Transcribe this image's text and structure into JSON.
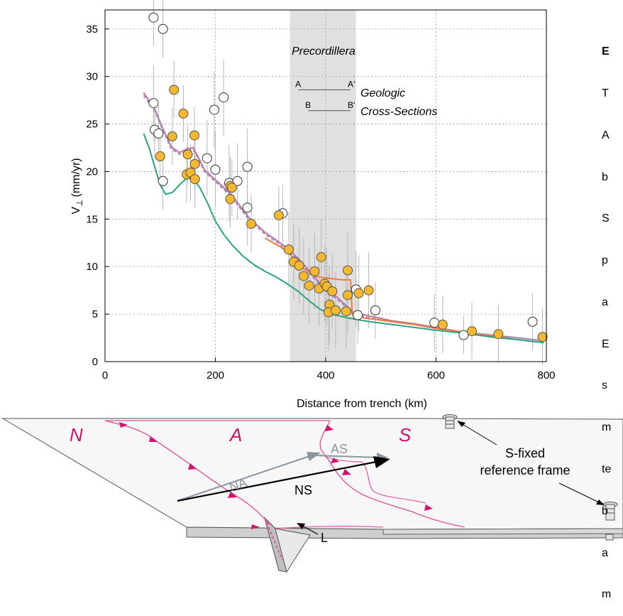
{
  "chart_data": {
    "type": "scatter",
    "xlabel": "Distance from trench (km)",
    "ylabel_main": "V",
    "ylabel_sub": "⊥",
    "ylabel_units": "(mm/yr)",
    "xlim": [
      0,
      800
    ],
    "ylim": [
      0,
      37
    ],
    "xticks": [
      0,
      200,
      400,
      600,
      800
    ],
    "yticks": [
      0,
      5,
      10,
      15,
      20,
      25,
      30,
      35
    ],
    "grid": true,
    "shaded_region": {
      "label": "Precordillera",
      "x": [
        335,
        455
      ]
    },
    "cross_sections": {
      "label_line1": "Geologic",
      "label_line2": "Cross-Sections",
      "lines": [
        {
          "start": "A",
          "end": "A'",
          "x": [
            350,
            445
          ],
          "y": 28.6
        },
        {
          "start": "B",
          "end": "B'",
          "x": [
            368,
            445
          ],
          "y": 26.4
        }
      ]
    },
    "open_points": [
      [
        88,
        36.2,
        3
      ],
      [
        105,
        35.0,
        3
      ],
      [
        88,
        27.2,
        4
      ],
      [
        90,
        24.4,
        3
      ],
      [
        97,
        24.0,
        3
      ],
      [
        105,
        19.0,
        3
      ],
      [
        185,
        21.4,
        4
      ],
      [
        198,
        26.5,
        4
      ],
      [
        200,
        20.2,
        4
      ],
      [
        215,
        27.8,
        4
      ],
      [
        225,
        18.8,
        4
      ],
      [
        240,
        19.0,
        4
      ],
      [
        258,
        20.5,
        4
      ],
      [
        258,
        16.2,
        4
      ],
      [
        322,
        15.6,
        3
      ],
      [
        455,
        7.6,
        4
      ],
      [
        458,
        4.9,
        3
      ],
      [
        490,
        5.4,
        3
      ],
      [
        597,
        4.1,
        3
      ],
      [
        650,
        2.8,
        2
      ],
      [
        775,
        4.2,
        3
      ]
    ],
    "filled_points": [
      [
        100,
        21.6,
        3
      ],
      [
        122,
        23.7,
        3
      ],
      [
        125,
        28.6,
        3
      ],
      [
        142,
        26.1,
        3
      ],
      [
        150,
        21.8,
        3
      ],
      [
        148,
        19.7,
        3
      ],
      [
        155,
        19.9,
        3
      ],
      [
        162,
        23.8,
        3
      ],
      [
        163,
        20.8,
        3
      ],
      [
        163,
        19.2,
        3
      ],
      [
        227,
        18.5,
        3
      ],
      [
        227,
        17.1,
        3
      ],
      [
        230,
        18.3,
        3
      ],
      [
        265,
        14.5,
        3
      ],
      [
        315,
        15.4,
        3
      ],
      [
        333,
        11.8,
        4
      ],
      [
        342,
        10.5,
        4
      ],
      [
        352,
        10.1,
        4
      ],
      [
        360,
        9.0,
        4
      ],
      [
        370,
        8.0,
        4
      ],
      [
        380,
        9.5,
        4
      ],
      [
        388,
        7.7,
        4
      ],
      [
        392,
        11.0,
        4
      ],
      [
        398,
        8.2,
        4
      ],
      [
        402,
        7.9,
        4
      ],
      [
        407,
        6.0,
        4
      ],
      [
        405,
        5.2,
        4
      ],
      [
        412,
        7.4,
        4
      ],
      [
        418,
        5.4,
        4
      ],
      [
        437,
        5.3,
        4
      ],
      [
        440,
        9.6,
        4
      ],
      [
        440,
        7.0,
        4
      ],
      [
        460,
        7.2,
        4
      ],
      [
        478,
        7.5,
        4
      ],
      [
        612,
        3.9,
        3
      ],
      [
        665,
        3.2,
        3
      ],
      [
        713,
        2.9,
        3
      ],
      [
        793,
        2.6,
        3
      ]
    ],
    "series": [
      {
        "color": "#c2739e",
        "points": [
          [
            70,
            28.3
          ],
          [
            90,
            26.6
          ],
          [
            105,
            24.5
          ],
          [
            120,
            22.6
          ],
          [
            135,
            22.0
          ],
          [
            150,
            22.4
          ],
          [
            160,
            22.5
          ],
          [
            170,
            21.4
          ],
          [
            180,
            20.2
          ],
          [
            195,
            19.4
          ],
          [
            210,
            18.6
          ],
          [
            230,
            17.5
          ],
          [
            260,
            15.2
          ],
          [
            290,
            13.6
          ],
          [
            320,
            12.4
          ],
          [
            350,
            10.9
          ],
          [
            375,
            9.2
          ],
          [
            400,
            7.6
          ],
          [
            420,
            6.8
          ],
          [
            450,
            5.2
          ],
          [
            480,
            4.8
          ],
          [
            520,
            4.3
          ],
          [
            560,
            4.0
          ],
          [
            600,
            3.6
          ],
          [
            650,
            3.1
          ],
          [
            700,
            2.8
          ],
          [
            750,
            2.5
          ],
          [
            795,
            2.2
          ]
        ]
      },
      {
        "color": "#9b92c4",
        "dashed": true,
        "points": [
          [
            70,
            28.0
          ],
          [
            90,
            26.4
          ],
          [
            105,
            24.3
          ],
          [
            120,
            22.4
          ],
          [
            135,
            21.8
          ],
          [
            150,
            22.2
          ],
          [
            160,
            22.3
          ],
          [
            170,
            21.2
          ],
          [
            180,
            20.0
          ],
          [
            195,
            19.2
          ],
          [
            210,
            18.4
          ],
          [
            230,
            17.3
          ],
          [
            260,
            15.0
          ],
          [
            290,
            13.4
          ],
          [
            320,
            12.2
          ],
          [
            350,
            10.7
          ],
          [
            375,
            9.0
          ],
          [
            400,
            7.4
          ],
          [
            420,
            6.6
          ],
          [
            450,
            5.1
          ],
          [
            480,
            4.6
          ],
          [
            520,
            4.2
          ],
          [
            560,
            3.9
          ],
          [
            600,
            3.5
          ],
          [
            650,
            3.1
          ],
          [
            700,
            2.8
          ],
          [
            750,
            2.5
          ],
          [
            795,
            2.2
          ]
        ]
      },
      {
        "color": "#ee7d3c",
        "points": [
          [
            290,
            13.0
          ],
          [
            320,
            12.0
          ],
          [
            335,
            11.3
          ],
          [
            360,
            9.8
          ],
          [
            380,
            9.0
          ],
          [
            400,
            8.8
          ],
          [
            430,
            8.6
          ],
          [
            445,
            8.6
          ],
          [
            447,
            6.5
          ],
          [
            448,
            5.0
          ],
          [
            470,
            4.6
          ],
          [
            520,
            4.2
          ],
          [
            560,
            3.9
          ],
          [
            600,
            3.5
          ],
          [
            650,
            3.1
          ],
          [
            700,
            2.7
          ],
          [
            750,
            2.3
          ],
          [
            795,
            2.0
          ]
        ]
      },
      {
        "color": "#2aa380",
        "points": [
          [
            70,
            24.0
          ],
          [
            80,
            22.5
          ],
          [
            90,
            20.5
          ],
          [
            100,
            18.6
          ],
          [
            110,
            17.6
          ],
          [
            122,
            17.8
          ],
          [
            135,
            18.6
          ],
          [
            148,
            19.3
          ],
          [
            160,
            19.2
          ],
          [
            172,
            18.3
          ],
          [
            185,
            16.8
          ],
          [
            200,
            14.8
          ],
          [
            215,
            13.4
          ],
          [
            230,
            12.3
          ],
          [
            250,
            11.1
          ],
          [
            270,
            10.2
          ],
          [
            290,
            9.5
          ],
          [
            310,
            8.9
          ],
          [
            330,
            8.2
          ],
          [
            350,
            7.4
          ],
          [
            370,
            6.4
          ],
          [
            390,
            5.5
          ],
          [
            410,
            5.0
          ],
          [
            440,
            4.6
          ],
          [
            480,
            4.2
          ],
          [
            520,
            3.9
          ],
          [
            560,
            3.6
          ],
          [
            600,
            3.3
          ],
          [
            650,
            3.0
          ],
          [
            700,
            2.6
          ],
          [
            750,
            2.3
          ],
          [
            795,
            2.0
          ]
        ]
      }
    ]
  },
  "diagram": {
    "plate_left": "N",
    "plate_middle": "A",
    "plate_right": "S",
    "vector_na": "NA",
    "vector_as": "AS",
    "vector_ns": "NS",
    "label_l": "L",
    "frame_line1": "S-fixed",
    "frame_line2": "reference frame",
    "colors": {
      "plate_label": "#d4106e",
      "fault": "#e0559a",
      "vector_gray": "#8c96a0",
      "vector_black": "#000000"
    }
  },
  "side_text": {
    "heading": "E",
    "lines": [
      "T",
      "A",
      "b",
      "S",
      "p",
      "a",
      "E",
      "s",
      "m",
      "te",
      "b",
      "a",
      "m"
    ]
  }
}
